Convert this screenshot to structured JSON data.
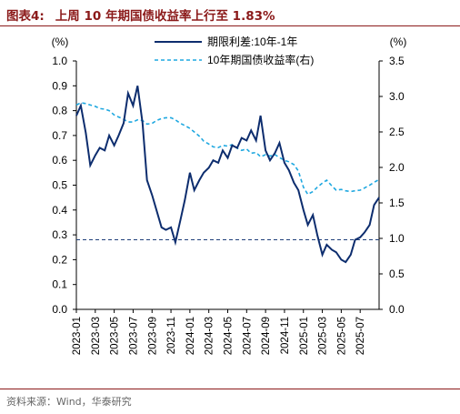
{
  "figure": {
    "label": "图表4:",
    "title": "上周 10 年期国债收益率上行至 1.83%",
    "source": "资料来源：Wind，华泰研究"
  },
  "colors": {
    "title": "#8b1a1a",
    "spread": "#0d2d6e",
    "yield10y": "#1fa8e0",
    "reference_line": "#1f3f7a"
  },
  "chart_data": {
    "type": "line",
    "left_axis": {
      "unit": "(%)",
      "ylim": [
        0.0,
        1.0
      ],
      "ticks": [
        "0.0",
        "0.1",
        "0.2",
        "0.3",
        "0.4",
        "0.5",
        "0.6",
        "0.7",
        "0.8",
        "0.9",
        "1.0"
      ]
    },
    "right_axis": {
      "unit": "(%)",
      "ylim": [
        0.0,
        3.5
      ],
      "ticks": [
        "0.0",
        "0.5",
        "1.0",
        "1.5",
        "2.0",
        "2.5",
        "3.0",
        "3.5"
      ]
    },
    "x_range": [
      "2023-01",
      "2025-09"
    ],
    "x_ticks": [
      "2023-01",
      "2023-03",
      "2023-05",
      "2023-07",
      "2023-09",
      "2023-11",
      "2024-01",
      "2024-03",
      "2024-05",
      "2024-07",
      "2024-09",
      "2024-11",
      "2025-01",
      "2025-03",
      "2025-05",
      "2025-07"
    ],
    "legend_position": "top-center",
    "reference_line": {
      "axis": "left",
      "y": 0.28
    },
    "series": [
      {
        "name": "期限利差:10年-1年",
        "axis": "left",
        "style": "solid",
        "x": [
          "2023-01",
          "2023-01-15",
          "2023-02",
          "2023-02-15",
          "2023-03",
          "2023-03-15",
          "2023-04",
          "2023-04-15",
          "2023-05",
          "2023-05-15",
          "2023-06",
          "2023-06-15",
          "2023-07",
          "2023-07-15",
          "2023-08",
          "2023-08-15",
          "2023-09",
          "2023-09-15",
          "2023-10",
          "2023-10-15",
          "2023-11",
          "2023-11-15",
          "2023-12",
          "2023-12-15",
          "2024-01",
          "2024-01-15",
          "2024-02",
          "2024-02-15",
          "2024-03",
          "2024-03-15",
          "2024-04",
          "2024-04-15",
          "2024-05",
          "2024-05-15",
          "2024-06",
          "2024-06-15",
          "2024-07",
          "2024-07-15",
          "2024-08",
          "2024-08-15",
          "2024-09",
          "2024-09-15",
          "2024-10",
          "2024-10-15",
          "2024-11",
          "2024-11-15",
          "2024-12",
          "2024-12-15",
          "2025-01",
          "2025-01-15",
          "2025-02",
          "2025-02-15",
          "2025-03",
          "2025-03-15",
          "2025-04",
          "2025-04-15",
          "2025-05",
          "2025-05-15",
          "2025-06",
          "2025-06-15",
          "2025-07",
          "2025-07-15",
          "2025-08",
          "2025-08-15",
          "2025-09"
        ],
        "values": [
          0.78,
          0.82,
          0.71,
          0.58,
          0.62,
          0.65,
          0.64,
          0.7,
          0.66,
          0.7,
          0.75,
          0.87,
          0.82,
          0.9,
          0.75,
          0.52,
          0.46,
          0.4,
          0.33,
          0.32,
          0.33,
          0.27,
          0.36,
          0.44,
          0.55,
          0.48,
          0.52,
          0.55,
          0.57,
          0.6,
          0.59,
          0.64,
          0.61,
          0.66,
          0.65,
          0.69,
          0.68,
          0.72,
          0.68,
          0.78,
          0.64,
          0.6,
          0.63,
          0.67,
          0.59,
          0.56,
          0.51,
          0.48,
          0.4,
          0.34,
          0.38,
          0.3,
          0.22,
          0.26,
          0.24,
          0.23,
          0.2,
          0.19,
          0.22,
          0.28,
          0.29,
          0.31,
          0.34,
          0.42,
          0.45
        ]
      },
      {
        "name": "10年期国债收益率(右)",
        "axis": "right",
        "style": "dashed",
        "x": [
          "2023-01",
          "2023-01-15",
          "2023-02",
          "2023-02-15",
          "2023-03",
          "2023-03-15",
          "2023-04",
          "2023-04-15",
          "2023-05",
          "2023-05-15",
          "2023-06",
          "2023-06-15",
          "2023-07",
          "2023-07-15",
          "2023-08",
          "2023-08-15",
          "2023-09",
          "2023-09-15",
          "2023-10",
          "2023-10-15",
          "2023-11",
          "2023-11-15",
          "2023-12",
          "2023-12-15",
          "2024-01",
          "2024-01-15",
          "2024-02",
          "2024-02-15",
          "2024-03",
          "2024-03-15",
          "2024-04",
          "2024-04-15",
          "2024-05",
          "2024-05-15",
          "2024-06",
          "2024-06-15",
          "2024-07",
          "2024-07-15",
          "2024-08",
          "2024-08-15",
          "2024-09",
          "2024-09-15",
          "2024-10",
          "2024-10-15",
          "2024-11",
          "2024-11-15",
          "2024-12",
          "2024-12-15",
          "2025-01",
          "2025-01-15",
          "2025-02",
          "2025-02-15",
          "2025-03",
          "2025-03-15",
          "2025-04",
          "2025-04-15",
          "2025-05",
          "2025-05-15",
          "2025-06",
          "2025-06-15",
          "2025-07",
          "2025-07-15",
          "2025-08",
          "2025-08-15",
          "2025-09"
        ],
        "values": [
          2.88,
          2.91,
          2.9,
          2.88,
          2.86,
          2.83,
          2.82,
          2.8,
          2.74,
          2.71,
          2.68,
          2.64,
          2.64,
          2.67,
          2.66,
          2.61,
          2.62,
          2.66,
          2.69,
          2.7,
          2.7,
          2.67,
          2.62,
          2.59,
          2.55,
          2.5,
          2.44,
          2.37,
          2.33,
          2.29,
          2.28,
          2.31,
          2.3,
          2.32,
          2.27,
          2.24,
          2.26,
          2.2,
          2.21,
          2.15,
          2.18,
          2.16,
          2.18,
          2.14,
          2.1,
          2.08,
          2.04,
          1.95,
          1.72,
          1.62,
          1.66,
          1.72,
          1.78,
          1.82,
          1.74,
          1.68,
          1.69,
          1.67,
          1.66,
          1.67,
          1.68,
          1.71,
          1.75,
          1.79,
          1.83
        ]
      }
    ]
  }
}
